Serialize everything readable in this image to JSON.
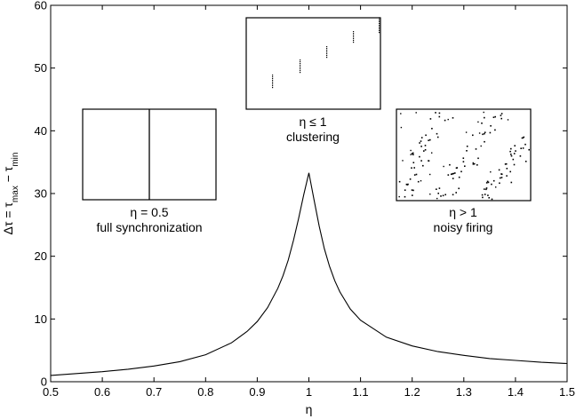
{
  "chart_data": {
    "type": "line",
    "xlabel": "η",
    "ylabel": "Δτ = τmax − τmin",
    "ylabel_parts": {
      "delta_tau": "Δτ = τ",
      "max": "max",
      "minus": " − τ",
      "min": "min"
    },
    "xlim": [
      0.5,
      1.5
    ],
    "ylim": [
      0,
      60
    ],
    "x_ticks": [
      "0.5",
      "0.6",
      "0.7",
      "0.8",
      "0.9",
      "1",
      "1.1",
      "1.2",
      "1.3",
      "1.4",
      "1.5"
    ],
    "y_ticks": [
      "0",
      "10",
      "20",
      "30",
      "40",
      "50",
      "60"
    ],
    "grid": false,
    "series": [
      {
        "x": [
          0.5,
          0.55,
          0.6,
          0.65,
          0.7,
          0.75,
          0.8,
          0.85,
          0.88,
          0.9,
          0.92,
          0.94,
          0.95,
          0.96,
          0.97,
          0.98,
          0.99,
          1.0,
          1.01,
          1.02,
          1.03,
          1.04,
          1.05,
          1.06,
          1.08,
          1.1,
          1.15,
          1.2,
          1.25,
          1.3,
          1.35,
          1.4,
          1.45,
          1.5
        ],
        "y": [
          1.0,
          1.3,
          1.6,
          2.0,
          2.5,
          3.2,
          4.3,
          6.2,
          8.0,
          9.6,
          11.8,
          14.9,
          16.9,
          19.4,
          22.5,
          26.0,
          29.8,
          33.3,
          29.0,
          24.8,
          21.2,
          18.4,
          16.1,
          14.3,
          11.6,
          9.8,
          7.1,
          5.7,
          4.8,
          4.2,
          3.7,
          3.4,
          3.1,
          2.9
        ]
      }
    ],
    "insets": [
      {
        "line1": "η = 0.5",
        "line2": "full synchronization",
        "pattern": "single vertical line"
      },
      {
        "line1": "η ≤ 1",
        "line2": "clustering",
        "pattern": "staircase of short vertical clusters"
      },
      {
        "line1": "η > 1",
        "line2": "noisy firing",
        "pattern": "scattered dots along diagonal bands"
      }
    ]
  }
}
